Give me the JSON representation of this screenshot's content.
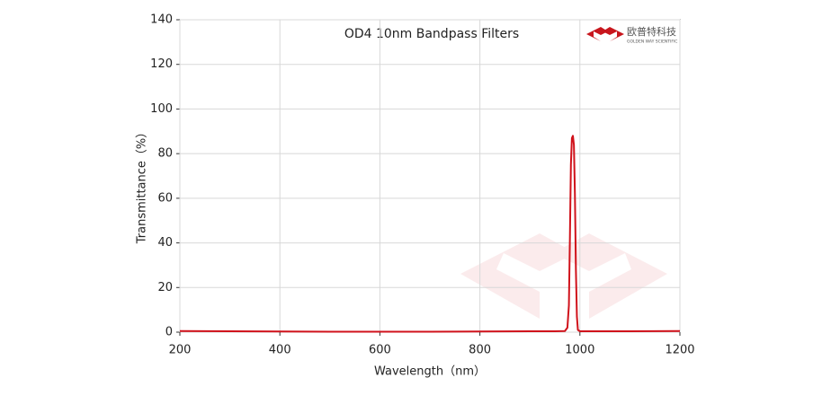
{
  "chart_data": {
    "type": "line",
    "title": "OD4 10nm Bandpass Filters",
    "logo_text": "欧普特科技",
    "logo_subtext": "GOLDEN WAY SCIENTIFIC",
    "xlabel": "Wavelength（nm）",
    "ylabel": "Transmittance（%）",
    "x": [
      200,
      300,
      400,
      500,
      600,
      700,
      800,
      900,
      950,
      970,
      975,
      978,
      980,
      982,
      984,
      986,
      988,
      990,
      992,
      994,
      996,
      1000,
      1100,
      1200
    ],
    "series": [
      {
        "name": "OD4 10nm",
        "color": "#d0121b",
        "values": [
          0.5,
          0.4,
          0.3,
          0.2,
          0.2,
          0.2,
          0.3,
          0.4,
          0.4,
          0.5,
          2,
          12,
          42,
          75,
          87,
          88,
          84,
          62,
          28,
          7,
          1,
          0.4,
          0.4,
          0.5
        ]
      }
    ],
    "xlim": [
      200,
      1200
    ],
    "xticks": [
      200,
      400,
      600,
      800,
      1000,
      1200
    ],
    "ylim": [
      0,
      140
    ],
    "yticks": [
      0,
      20,
      40,
      60,
      80,
      100,
      120,
      140
    ],
    "grid": true
  }
}
